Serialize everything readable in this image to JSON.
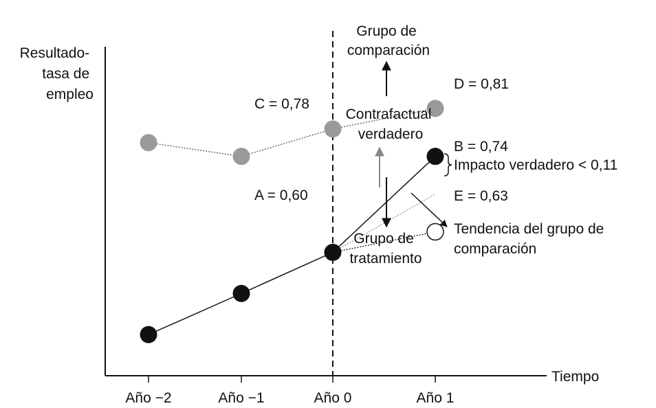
{
  "chart_data": {
    "type": "line",
    "ylabel_lines": [
      "Resultado-",
      "tasa de",
      "empleo"
    ],
    "xlabel": "Tiempo",
    "categories": [
      "Año −2",
      "Año −1",
      "Año 0",
      "Año 1"
    ],
    "ylim": [
      0.42,
      0.9
    ],
    "series": [
      {
        "name": "Grupo de comparación",
        "style": "dotted",
        "color": "#909090",
        "values": [
          0.76,
          0.74,
          0.78,
          0.81
        ]
      },
      {
        "name": "Grupo de tratamiento",
        "style": "solid",
        "color": "#111111",
        "values": [
          0.48,
          0.54,
          0.6,
          0.74
        ]
      }
    ],
    "counterfactual": {
      "name": "E",
      "x_index": 3,
      "value": 0.63
    },
    "point_labels": {
      "A": "A = 0,60",
      "B": "B = 0,74",
      "C": "C = 0,78",
      "D": "D = 0,81",
      "E": "E = 0,63"
    },
    "annotations": {
      "comparison_group": [
        "Grupo de",
        "comparación"
      ],
      "counterfactual": [
        "Contrafactual",
        "verdadero"
      ],
      "treatment_group": [
        "Grupo de",
        "tratamiento"
      ],
      "impact": "Impacto verdadero < 0,11",
      "trend": [
        "Tendencia del grupo de",
        "comparación"
      ]
    }
  }
}
